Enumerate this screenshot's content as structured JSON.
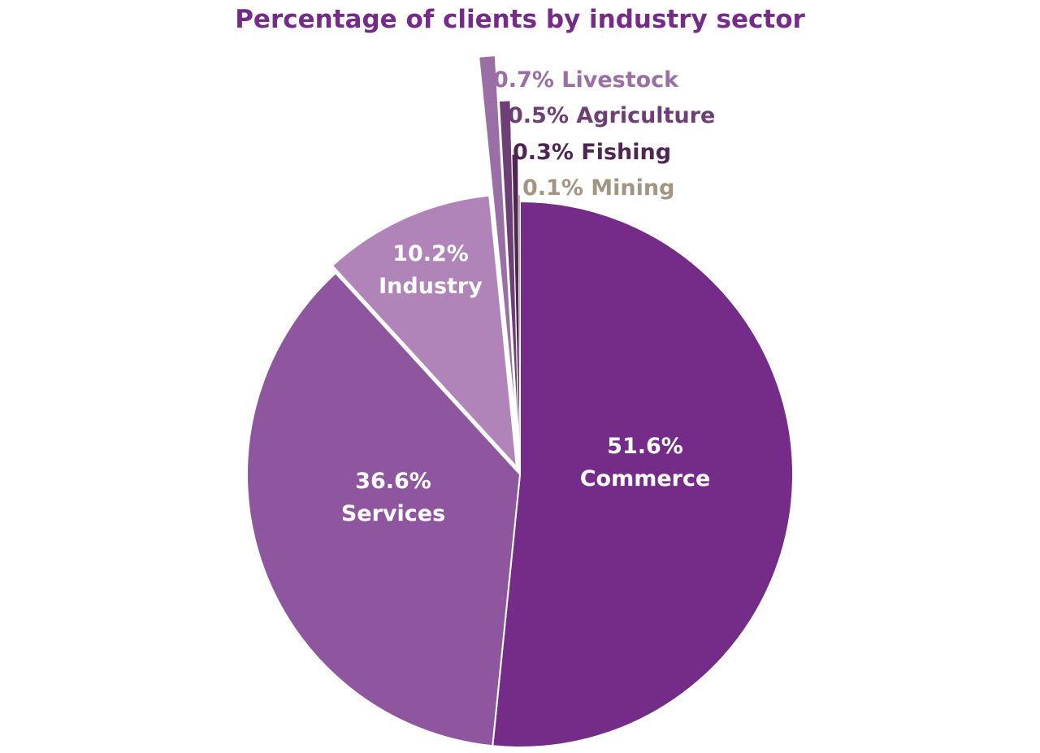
{
  "chart_data": {
    "type": "pie",
    "title": "Percentage of clients by industry sector",
    "slices": [
      {
        "name": "Commerce",
        "value": 51.6,
        "label": "51.6%",
        "color": "#742c88",
        "exploded": false,
        "label_side": "inside"
      },
      {
        "name": "Services",
        "value": 36.6,
        "label": "36.6%",
        "color": "#8e569e",
        "exploded": false,
        "label_side": "inside"
      },
      {
        "name": "Industry",
        "value": 10.2,
        "label": "10.2%",
        "color": "#b083b9",
        "exploded": true,
        "label_side": "inside"
      },
      {
        "name": "Livestock",
        "value": 0.7,
        "label": "0.7%",
        "color": "#9a6fa5",
        "exploded": true,
        "label_side": "outside"
      },
      {
        "name": "Agriculture",
        "value": 0.5,
        "label": "0.5%",
        "color": "#6e3f75",
        "exploded": true,
        "label_side": "outside"
      },
      {
        "name": "Fishing",
        "value": 0.3,
        "label": "0.3%",
        "color": "#4f2552",
        "exploded": true,
        "label_side": "outside"
      },
      {
        "name": "Mining",
        "value": 0.1,
        "label": "0.1%",
        "color": "#a39584",
        "exploded": true,
        "label_side": "outside"
      }
    ],
    "start": "12 o'clock",
    "direction": "clockwise",
    "legend": "none"
  }
}
